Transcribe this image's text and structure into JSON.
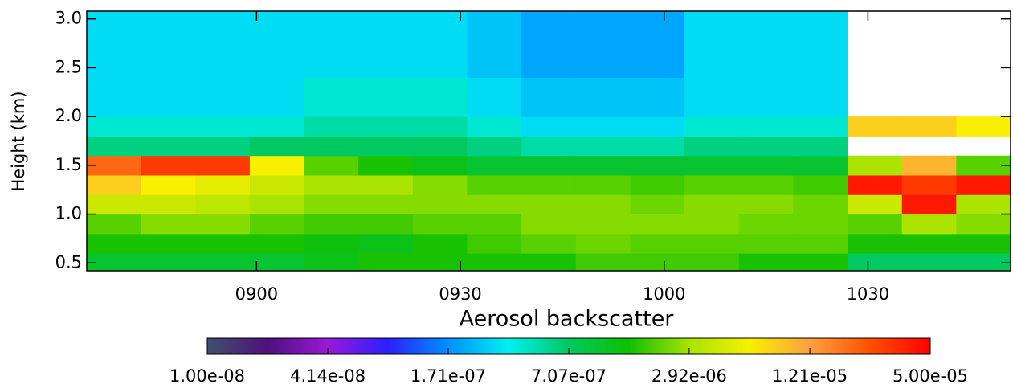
{
  "chart_data": {
    "type": "heatmap",
    "x_label": "Aerosol backscatter",
    "y_label": "Height (km)",
    "xlim": [
      515,
      651
    ],
    "xticks": [
      {
        "value": 540,
        "label": "0900"
      },
      {
        "value": 570,
        "label": "0930"
      },
      {
        "value": 600,
        "label": "1000"
      },
      {
        "value": 630,
        "label": "1030"
      }
    ],
    "ylim": [
      0.42,
      3.08
    ],
    "yticks": [
      0.5,
      {
        "value": 1,
        "label": "1.0"
      },
      1.5,
      {
        "value": 2,
        "label": "2.0"
      },
      2.5,
      {
        "value": 3,
        "label": "3.0"
      }
    ],
    "xbins": [
      515,
      523,
      531,
      539,
      547,
      555,
      563,
      571,
      579,
      587,
      595,
      603,
      611,
      619,
      627,
      635,
      643,
      651
    ],
    "ybins": [
      0.42,
      0.6,
      0.8,
      1.0,
      1.2,
      1.4,
      1.6,
      1.8,
      2.0,
      2.4,
      2.8,
      3.08
    ],
    "values": [
      [
        1e-06,
        1.5e-06,
        2e-06,
        4e-06,
        8e-06,
        2e-05,
        6e-07,
        4e-07,
        3e-07,
        3e-07,
        3e-07
      ],
      [
        1e-06,
        1.5e-06,
        2.5e-06,
        4e-06,
        6e-06,
        3e-05,
        6e-07,
        4e-07,
        3e-07,
        3e-07,
        3e-07
      ],
      [
        1e-06,
        1.5e-06,
        2.5e-06,
        3.5e-06,
        5e-06,
        3e-05,
        6e-07,
        4e-07,
        3e-07,
        3e-07,
        3e-07
      ],
      [
        1e-06,
        1.5e-06,
        2e-06,
        3e-06,
        4e-06,
        6e-06,
        7e-07,
        4e-07,
        3e-07,
        3e-07,
        3e-07
      ],
      [
        1.2e-06,
        1.3e-06,
        1.8e-06,
        2.5e-06,
        3e-06,
        2e-06,
        7e-07,
        5e-07,
        4e-07,
        3e-07,
        3e-07
      ],
      [
        1.5e-06,
        1.2e-06,
        1.8e-06,
        2.5e-06,
        3e-06,
        1.5e-06,
        7e-07,
        5e-07,
        4e-07,
        3e-07,
        3e-07
      ],
      [
        1.5e-06,
        1.5e-06,
        2e-06,
        2.5e-06,
        2.5e-06,
        1.2e-06,
        7e-07,
        5e-07,
        4e-07,
        3e-07,
        3e-07
      ],
      [
        1.5e-06,
        1.8e-06,
        2e-06,
        2.5e-06,
        2e-06,
        1e-06,
        6e-07,
        4e-07,
        3e-07,
        2.5e-07,
        2.5e-07
      ],
      [
        1.5e-06,
        2e-06,
        2.5e-06,
        2.5e-06,
        2e-06,
        1e-06,
        5e-07,
        3e-07,
        2.5e-07,
        2e-07,
        2e-07
      ],
      [
        1.8e-06,
        2.2e-06,
        2.5e-06,
        2.5e-06,
        2e-06,
        1e-06,
        5e-07,
        3e-07,
        2.5e-07,
        2e-07,
        2e-07
      ],
      [
        1.8e-06,
        2e-06,
        2.5e-06,
        2.2e-06,
        1.8e-06,
        1e-06,
        5e-07,
        3e-07,
        2.5e-07,
        2e-07,
        2e-07
      ],
      [
        1.8e-06,
        2e-06,
        2.5e-06,
        2.5e-06,
        2e-06,
        1e-06,
        6e-07,
        4e-07,
        3e-07,
        3e-07,
        3e-07
      ],
      [
        1.5e-06,
        2e-06,
        2.2e-06,
        2.5e-06,
        2e-06,
        1e-06,
        6e-07,
        4e-07,
        3e-07,
        3e-07,
        3e-07
      ],
      [
        1.5e-06,
        2e-06,
        2.2e-06,
        2.2e-06,
        1.8e-06,
        1e-06,
        6e-07,
        4e-07,
        3e-07,
        3e-07,
        3e-07
      ],
      [
        7e-07,
        1.5e-06,
        2e-06,
        4e-06,
        4e-05,
        3e-06,
        null,
        8e-06,
        null,
        null,
        null
      ],
      [
        7e-07,
        1.5e-06,
        3e-06,
        4e-05,
        3e-05,
        1e-05,
        null,
        8e-06,
        null,
        null,
        null
      ],
      [
        7e-07,
        1.5e-06,
        2.5e-06,
        3e-06,
        4e-05,
        2e-06,
        null,
        6e-06,
        null,
        null,
        null
      ]
    ],
    "colorbar": {
      "log": true,
      "lim": [
        1e-08,
        5e-05
      ],
      "ticks": [
        {
          "value": 1e-08,
          "label": "1.00e-08"
        },
        {
          "value": 4.14e-08,
          "label": "4.14e-08"
        },
        {
          "value": 1.71e-07,
          "label": "1.71e-07"
        },
        {
          "value": 7.07e-07,
          "label": "7.07e-07"
        },
        {
          "value": 2.92e-06,
          "label": "2.92e-06"
        },
        {
          "value": 1.21e-05,
          "label": "1.21e-05"
        },
        {
          "value": 5e-05,
          "label": "5.00e-05"
        }
      ],
      "colors": [
        "#405070",
        "#50107a",
        "#9a18d8",
        "#2a20ff",
        "#0090ff",
        "#00f0f0",
        "#00c860",
        "#10c000",
        "#a8e400",
        "#f8f000",
        "#ffa040",
        "#ff5000",
        "#ff0000"
      ]
    }
  }
}
